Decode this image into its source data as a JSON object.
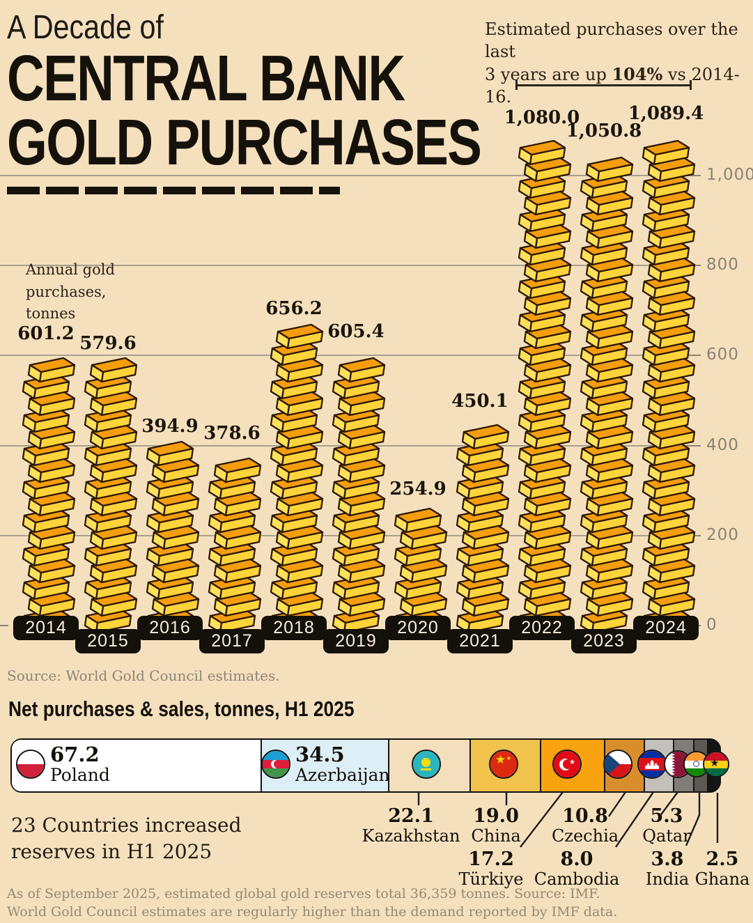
{
  "colors": {
    "background": "#F5E0BE",
    "ingot_top": "#F59D0C",
    "ingot_front": "#FFD43B",
    "ingot_cap": "#FFE05A",
    "ingot_outline": "#2A1804",
    "grid": "#A99F8D",
    "pill_bg": "#14100A",
    "pill_text": "#F6EEDD"
  },
  "header": {
    "title_line1": "A Decade of",
    "title_line2": "CENTRAL BANK",
    "title_line3": "GOLD PURCHASES",
    "annotation_line1": "Estimated purchases over the last",
    "annotation_line2_pre": "3 years are up ",
    "annotation_line2_bold": "104%",
    "annotation_line2_post": " vs 2014-16."
  },
  "chart": {
    "axis_note": "Annual gold\npurchases,\ntonnes",
    "source": "Source: World Gold Council estimates.",
    "yticks": [
      {
        "value": 0,
        "label": "0"
      },
      {
        "value": 200,
        "label": "200"
      },
      {
        "value": 400,
        "label": "400"
      },
      {
        "value": 600,
        "label": "600"
      },
      {
        "value": 800,
        "label": "800"
      },
      {
        "value": 1000,
        "label": "1,000"
      }
    ]
  },
  "chart_data": [
    {
      "type": "bar",
      "title": "A Decade of Central Bank Gold Purchases",
      "ylabel": "Annual gold purchases, tonnes",
      "categories": [
        "2014",
        "2015",
        "2016",
        "2017",
        "2018",
        "2019",
        "2020",
        "2021",
        "2022",
        "2023",
        "2024"
      ],
      "values": [
        601.2,
        579.6,
        394.9,
        378.6,
        656.2,
        605.4,
        254.9,
        450.1,
        1080.0,
        1050.8,
        1089.4
      ],
      "value_labels": [
        "601.2",
        "579.6",
        "394.9",
        "378.6",
        "656.2",
        "605.4",
        "254.9",
        "450.1",
        "1,080.0",
        "1,050.8",
        "1,089.4"
      ],
      "ylim": [
        0,
        1100
      ],
      "yticks": [
        0,
        200,
        400,
        600,
        800,
        1000
      ],
      "grid": true,
      "legend": false,
      "annotation": "Estimated purchases over the last 3 years are up 104% vs 2014-16.",
      "bracket_span": [
        "2022",
        "2024"
      ],
      "source": "Source: World Gold Council estimates."
    },
    {
      "type": "bar",
      "title": "Net purchases & sales, tonnes, H1 2025",
      "categories": [
        "Poland",
        "Azerbaijan",
        "Kazakhstan",
        "China",
        "Türkiye",
        "Czechia",
        "Cambodia",
        "Qatar",
        "India",
        "Ghana"
      ],
      "values": [
        67.2,
        34.5,
        22.1,
        19.0,
        17.2,
        10.8,
        8.0,
        5.3,
        3.8,
        2.5
      ],
      "value_labels": [
        "67.2",
        "34.5",
        "22.1",
        "19.0",
        "17.2",
        "10.8",
        "8.0",
        "5.3",
        "3.8",
        "2.5"
      ],
      "note": "23 Countries increased reserves in H1 2025"
    }
  ],
  "bottom": {
    "heading": "Net purchases & sales, tonnes, H1 2025",
    "note_line1": "23 Countries increased",
    "note_line2": "reserves in H1 2025",
    "countries": [
      {
        "name": "Poland",
        "label": "67.2",
        "value": 67.2,
        "color": "#FFFFFF",
        "flag": "poland"
      },
      {
        "name": "Azerbaijan",
        "label": "34.5",
        "value": 34.5,
        "color": "#DDEFF6",
        "flag": "azerbaijan"
      },
      {
        "name": "Kazakhstan",
        "label": "22.1",
        "value": 22.1,
        "color": "#F3DFBC",
        "flag": "kazakhstan"
      },
      {
        "name": "China",
        "label": "19.0",
        "value": 19.0,
        "color": "#F1C34D",
        "flag": "china"
      },
      {
        "name": "Türkiye",
        "label": "17.2",
        "value": 17.2,
        "color": "#F8A30F",
        "flag": "turkiye"
      },
      {
        "name": "Czechia",
        "label": "10.8",
        "value": 10.8,
        "color": "#D98E2E",
        "flag": "czechia"
      },
      {
        "name": "Cambodia",
        "label": "8.0",
        "value": 8.0,
        "color": "#C3BFBB",
        "flag": "cambodia"
      },
      {
        "name": "Qatar",
        "label": "5.3",
        "value": 5.3,
        "color": "#807D79",
        "flag": "qatar"
      },
      {
        "name": "India",
        "label": "3.8",
        "value": 3.8,
        "color": "#5C5955",
        "flag": "india"
      },
      {
        "name": "Ghana",
        "label": "2.5",
        "value": 2.5,
        "color": "#151515",
        "flag": "ghana"
      }
    ],
    "footer_line1": "As of September 2025, estimated global gold reserves total 36,359 tonnes. Source: IMF.",
    "footer_line2": "World Gold Council estimates are regularly higher than the demand reported by IMF data."
  }
}
